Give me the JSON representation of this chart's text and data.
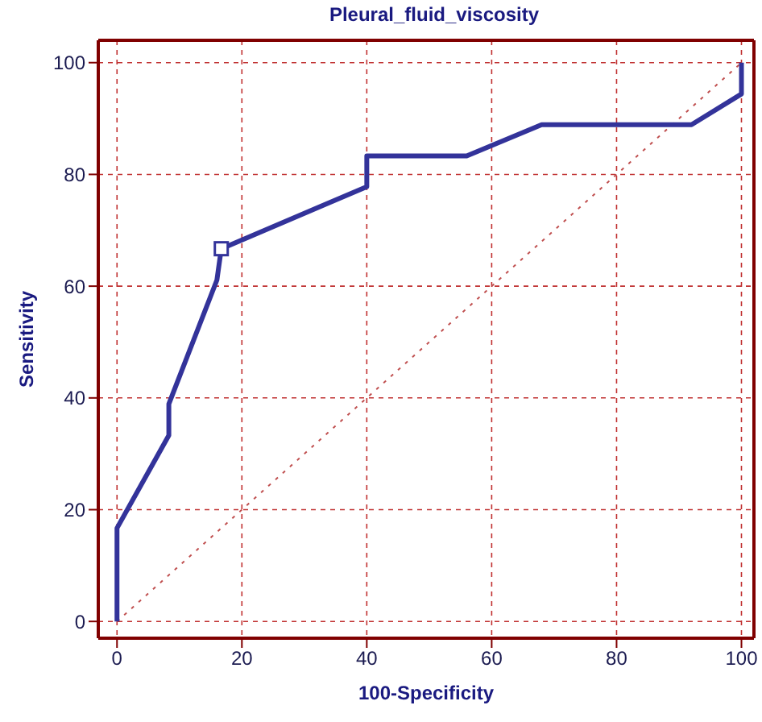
{
  "chart_data": {
    "type": "line",
    "title": "Pleural_fluid_viscosity",
    "xlabel": "100-Specificity",
    "ylabel": "Sensitivity",
    "xlim": [
      -3,
      102
    ],
    "ylim": [
      -3,
      104
    ],
    "xticks": [
      0,
      20,
      40,
      60,
      80,
      100
    ],
    "yticks": [
      0,
      20,
      40,
      60,
      80,
      100
    ],
    "grid": true,
    "marker": "none",
    "line_style": "solid",
    "series": [
      {
        "color": "#33339a",
        "x": [
          0,
          0,
          8.3,
          8.3,
          16,
          16.7,
          40,
          40,
          56,
          68,
          92,
          100,
          100
        ],
        "values": [
          0,
          16.7,
          33.3,
          38.9,
          61.1,
          66.7,
          77.8,
          83.3,
          83.3,
          88.9,
          88.9,
          94.4,
          100
        ]
      },
      {
        "type": "line",
        "color": "#c05050",
        "line_style": "dotted",
        "x": [
          0,
          100
        ],
        "values": [
          0,
          100
        ]
      },
      {
        "type": "scatter",
        "marker": "square",
        "color": "#33339a",
        "x": [
          16.7
        ],
        "values": [
          66.7
        ]
      }
    ]
  }
}
